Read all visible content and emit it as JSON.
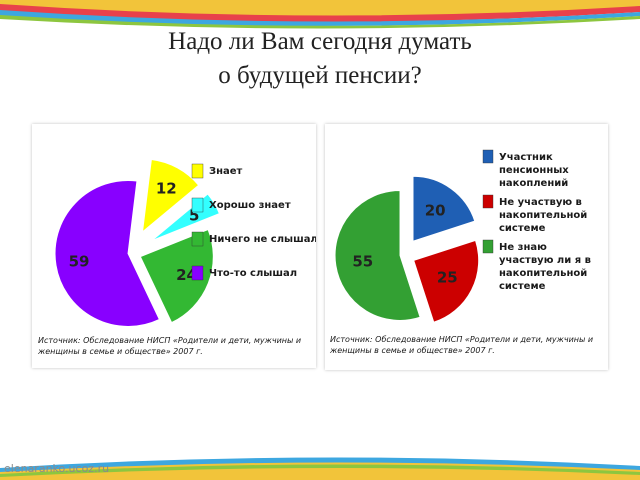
{
  "slide": {
    "title_line1": "Надо ли Вам сегодня думать",
    "title_line2": "о будущей пенсии?",
    "site": "elenaranko.ucoz.ru"
  },
  "chart_data": [
    {
      "type": "pie",
      "title": "",
      "categories": [
        "Знает",
        "Хорошо знает",
        "Ничего не слышал",
        "Что-то слышал"
      ],
      "values": [
        12,
        5,
        24,
        59
      ],
      "colors": [
        "#ffff00",
        "#33ffff",
        "#33b833",
        "#8800ff"
      ],
      "exploded": true,
      "legend_position": "right",
      "source": [
        "Источник: Обследование НИСП «Родители и дети, мужчины и",
        "женщины в семье и обществе» 2007 г."
      ]
    },
    {
      "type": "pie",
      "title": "",
      "categories": [
        "Участник пенсионных накоплений",
        "Не участвую в накопительной системе",
        "Не знаю участвую ли я в накопительной системе"
      ],
      "legend_lines": [
        [
          "Участник",
          "пенсионных",
          "накоплений"
        ],
        [
          "Не участвую в",
          "накопительной",
          "системе"
        ],
        [
          "Не знаю",
          "участвую ли я в",
          "накопительной",
          "системе"
        ]
      ],
      "values": [
        20,
        25,
        55
      ],
      "colors": [
        "#1f5fb4",
        "#cc0000",
        "#33a033"
      ],
      "exploded": true,
      "legend_position": "right",
      "source": [
        "Источник: Обследование НИСП «Родители и дети, мужчины и",
        "женщины в семье и обществе» 2007 г."
      ]
    }
  ]
}
